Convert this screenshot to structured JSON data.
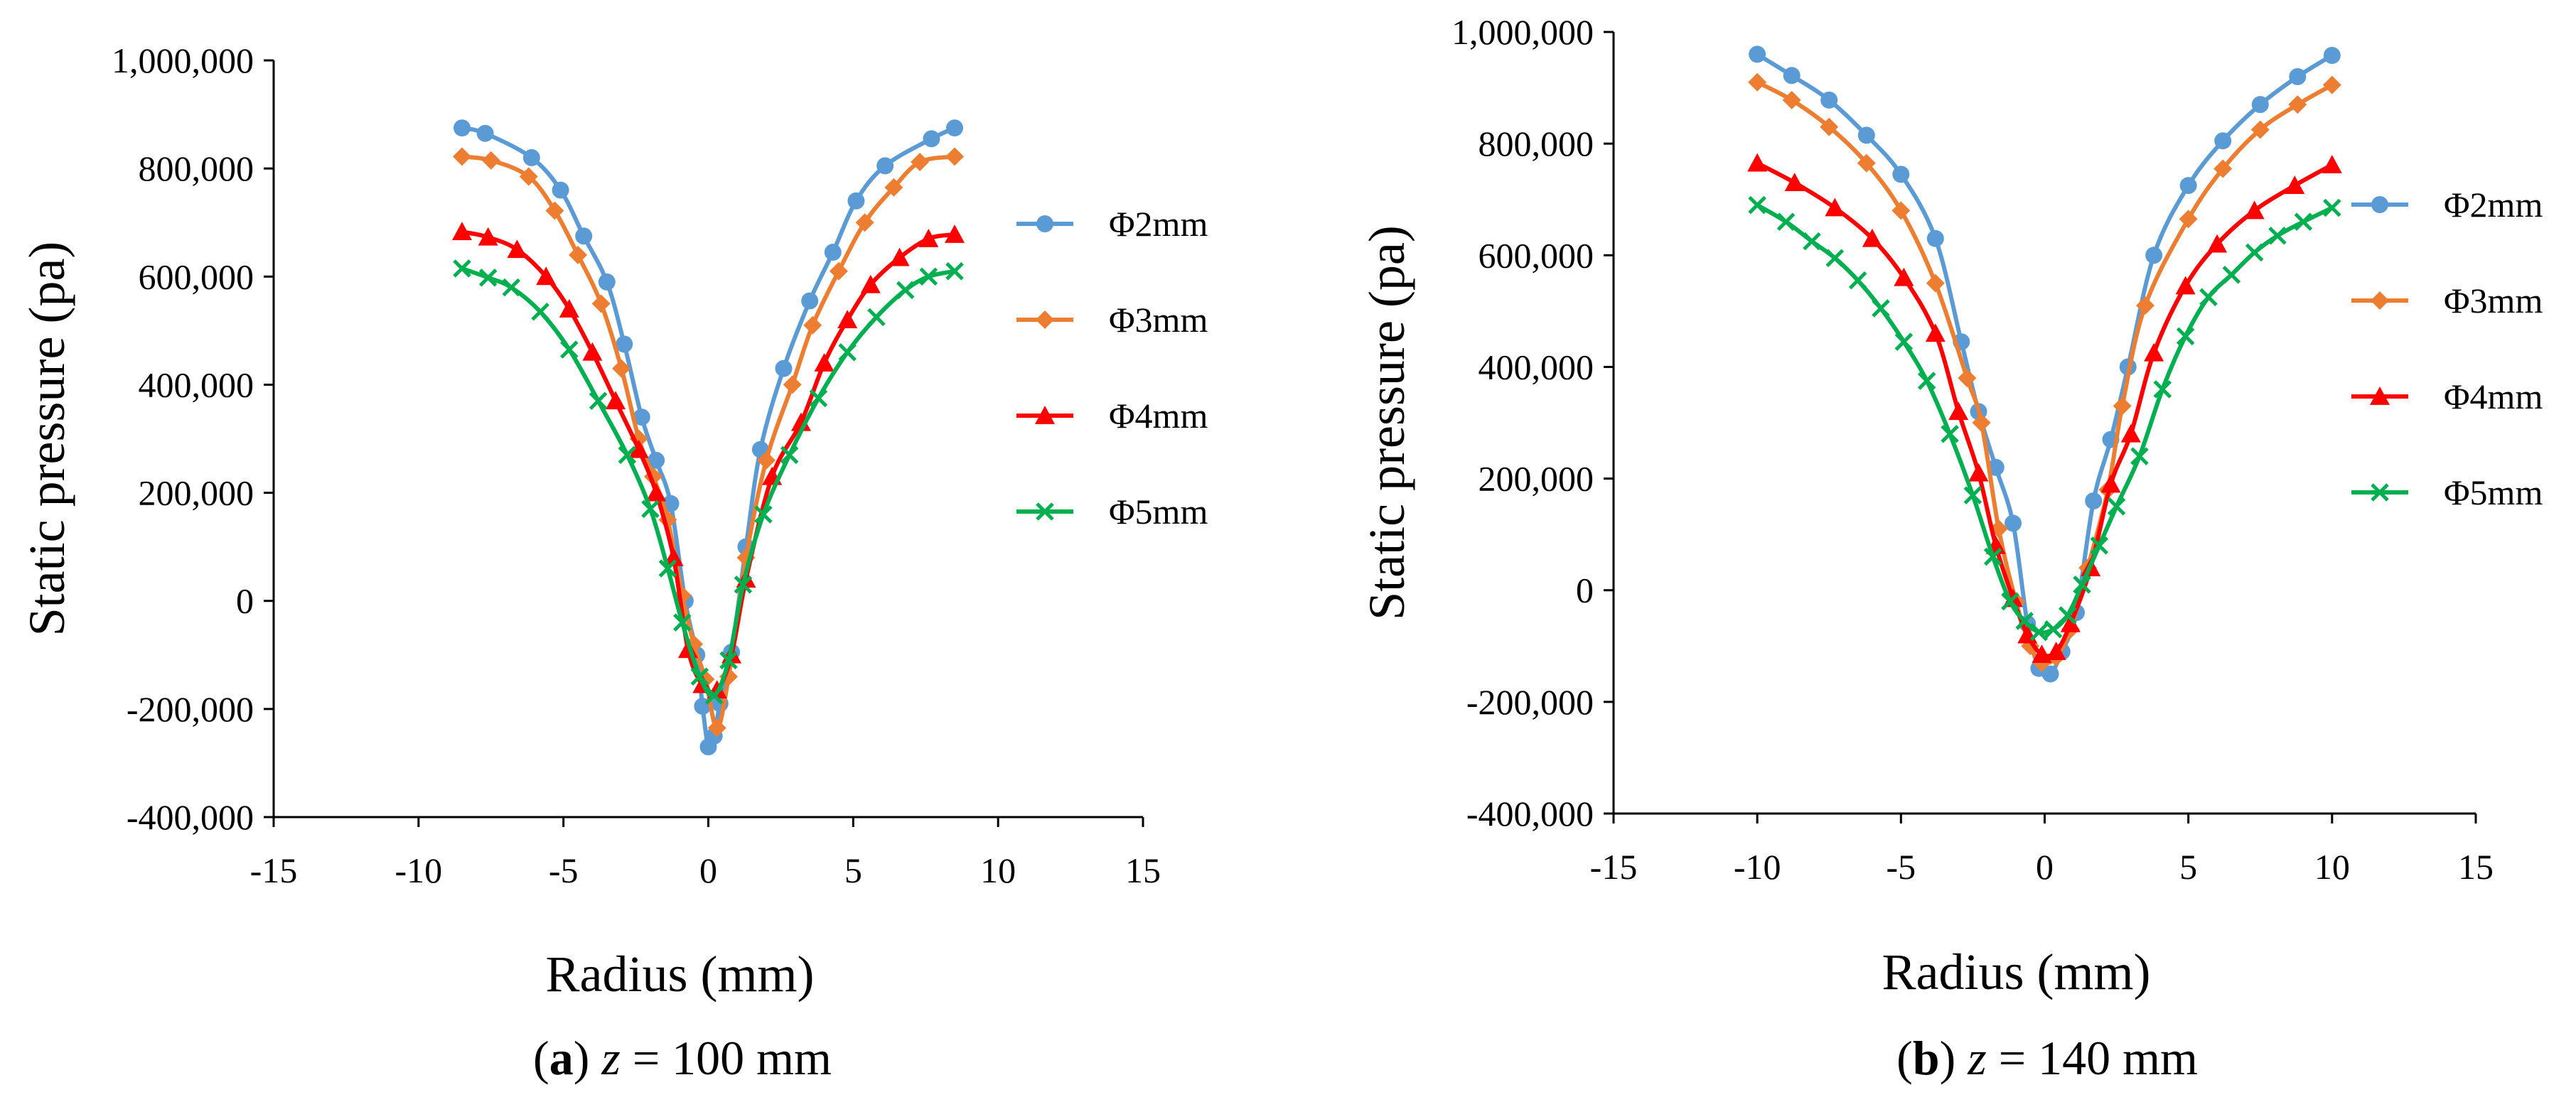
{
  "chart_data": [
    {
      "type": "line",
      "caption_letter": "a",
      "caption_var": "z",
      "caption_rest": " = 100 mm",
      "xlabel": "Radius (mm)",
      "ylabel": "Static pressure (pa)",
      "xlim": [
        -15,
        15
      ],
      "ylim": [
        -400000,
        1000000
      ],
      "xticks": [
        -15,
        -10,
        -5,
        0,
        5,
        10,
        15
      ],
      "yticks": [
        -400000,
        -200000,
        0,
        200000,
        400000,
        600000,
        800000,
        1000000
      ],
      "xtick_labels": [
        "-15",
        "-10",
        "-5",
        "0",
        "5",
        "10",
        "15"
      ],
      "ytick_labels": [
        "-400,000",
        "-200,000",
        "0",
        "200,000",
        "400,000",
        "600,000",
        "800,000",
        "1,000,000"
      ],
      "legend_position": "right",
      "series": [
        {
          "name": "Φ2mm",
          "color": "#5b9bd5",
          "marker": "circle",
          "x": [
            -8.5,
            -7.7,
            -6.1,
            -5.1,
            -4.3,
            -3.5,
            -2.9,
            -2.3,
            -1.8,
            -1.3,
            -0.8,
            -0.4,
            -0.2,
            0.0,
            0.2,
            0.4,
            0.8,
            1.3,
            1.8,
            2.6,
            3.5,
            4.3,
            5.1,
            6.1,
            7.7,
            8.5
          ],
          "y": [
            875000,
            865000,
            820000,
            760000,
            675000,
            590000,
            475000,
            340000,
            260000,
            180000,
            0,
            -100000,
            -195000,
            -270000,
            -250000,
            -190000,
            -95000,
            100000,
            280000,
            430000,
            555000,
            645000,
            740000,
            805000,
            855000,
            875000
          ]
        },
        {
          "name": "Φ3mm",
          "color": "#ed7d31",
          "marker": "diamond",
          "x": [
            -8.5,
            -7.5,
            -6.2,
            -5.3,
            -4.5,
            -3.7,
            -3.0,
            -2.4,
            -1.9,
            -1.4,
            -0.9,
            -0.5,
            -0.1,
            0.3,
            0.7,
            1.3,
            2.0,
            2.9,
            3.6,
            4.5,
            5.4,
            6.4,
            7.3,
            8.5
          ],
          "y": [
            822000,
            815000,
            785000,
            722000,
            640000,
            550000,
            430000,
            300000,
            230000,
            150000,
            10000,
            -80000,
            -145000,
            -235000,
            -140000,
            80000,
            260000,
            400000,
            510000,
            610000,
            700000,
            765000,
            812000,
            822000
          ]
        },
        {
          "name": "Φ4mm",
          "color": "#ff0000",
          "marker": "triangle",
          "x": [
            -8.5,
            -7.6,
            -6.6,
            -5.6,
            -4.8,
            -4.0,
            -3.2,
            -2.4,
            -1.8,
            -1.2,
            -0.7,
            -0.2,
            0.3,
            0.8,
            1.3,
            2.2,
            3.2,
            4.0,
            4.8,
            5.6,
            6.6,
            7.6,
            8.5
          ],
          "y": [
            683000,
            673000,
            650000,
            600000,
            540000,
            460000,
            370000,
            280000,
            200000,
            80000,
            -90000,
            -155000,
            -165000,
            -100000,
            40000,
            230000,
            330000,
            440000,
            520000,
            585000,
            635000,
            670000,
            678000
          ]
        },
        {
          "name": "Φ5mm",
          "color": "#00b050",
          "marker": "x",
          "x": [
            -8.5,
            -7.6,
            -6.8,
            -5.8,
            -4.8,
            -3.8,
            -2.8,
            -2.0,
            -1.4,
            -0.9,
            -0.3,
            0.2,
            0.7,
            1.2,
            1.9,
            2.8,
            3.8,
            4.8,
            5.8,
            6.8,
            7.6,
            8.5
          ],
          "y": [
            615000,
            598000,
            580000,
            535000,
            465000,
            370000,
            270000,
            170000,
            60000,
            -40000,
            -140000,
            -175000,
            -110000,
            30000,
            160000,
            270000,
            375000,
            460000,
            525000,
            575000,
            600000,
            610000
          ]
        }
      ]
    },
    {
      "type": "line",
      "caption_letter": "b",
      "caption_var": "z",
      "caption_rest": " = 140 mm",
      "xlabel": "Radius (mm)",
      "ylabel": "Static pressure (pa)",
      "xlim": [
        -15,
        15
      ],
      "ylim": [
        -400000,
        1000000
      ],
      "xticks": [
        -15,
        -10,
        -5,
        0,
        5,
        10,
        15
      ],
      "yticks": [
        -400000,
        -200000,
        0,
        200000,
        400000,
        600000,
        800000,
        1000000
      ],
      "xtick_labels": [
        "-15",
        "-10",
        "-5",
        "0",
        "5",
        "10",
        "15"
      ],
      "ytick_labels": [
        "-400,000",
        "-200,000",
        "0",
        "200,000",
        "400,000",
        "600,000",
        "800,000",
        "1,000,000"
      ],
      "legend_position": "right",
      "series": [
        {
          "name": "Φ2mm",
          "color": "#5b9bd5",
          "marker": "circle",
          "x": [
            -10.0,
            -8.8,
            -7.5,
            -6.2,
            -5.0,
            -3.8,
            -2.9,
            -2.3,
            -1.7,
            -1.1,
            -0.6,
            -0.2,
            0.2,
            0.6,
            1.1,
            1.7,
            2.3,
            2.9,
            3.8,
            5.0,
            6.2,
            7.5,
            8.8,
            10.0
          ],
          "y": [
            960000,
            922000,
            878000,
            815000,
            745000,
            630000,
            445000,
            320000,
            220000,
            120000,
            -60000,
            -140000,
            -150000,
            -110000,
            -40000,
            160000,
            270000,
            400000,
            600000,
            725000,
            805000,
            870000,
            920000,
            958000
          ]
        },
        {
          "name": "Φ3mm",
          "color": "#ed7d31",
          "marker": "diamond",
          "x": [
            -10.0,
            -8.8,
            -7.5,
            -6.2,
            -5.0,
            -3.8,
            -2.7,
            -2.2,
            -1.6,
            -1.0,
            -0.5,
            -0.1,
            0.4,
            0.9,
            1.5,
            2.2,
            2.7,
            3.5,
            5.0,
            6.2,
            7.5,
            8.8,
            10.0
          ],
          "y": [
            910000,
            878000,
            830000,
            765000,
            680000,
            550000,
            380000,
            300000,
            110000,
            -20000,
            -100000,
            -130000,
            -120000,
            -70000,
            40000,
            180000,
            330000,
            510000,
            665000,
            755000,
            825000,
            870000,
            905000
          ]
        },
        {
          "name": "Φ4mm",
          "color": "#ff0000",
          "marker": "triangle",
          "x": [
            -10.0,
            -8.7,
            -7.3,
            -6.0,
            -4.9,
            -3.8,
            -3.0,
            -2.3,
            -1.7,
            -1.1,
            -0.6,
            -0.1,
            0.4,
            0.9,
            1.6,
            2.3,
            3.0,
            3.8,
            4.9,
            6.0,
            7.3,
            8.7,
            10.0
          ],
          "y": [
            765000,
            730000,
            685000,
            630000,
            560000,
            460000,
            320000,
            210000,
            80000,
            -15000,
            -80000,
            -115000,
            -110000,
            -60000,
            40000,
            190000,
            280000,
            425000,
            545000,
            620000,
            680000,
            725000,
            762000
          ]
        },
        {
          "name": "Φ5mm",
          "color": "#00b050",
          "marker": "x",
          "x": [
            -10.0,
            -9.0,
            -8.1,
            -7.3,
            -6.5,
            -5.7,
            -4.9,
            -4.1,
            -3.3,
            -2.5,
            -1.8,
            -1.2,
            -0.7,
            -0.2,
            0.3,
            0.8,
            1.3,
            1.9,
            2.5,
            3.3,
            4.1,
            4.9,
            5.7,
            6.5,
            7.3,
            8.1,
            9.0,
            10.0
          ],
          "y": [
            690000,
            660000,
            625000,
            595000,
            555000,
            505000,
            445000,
            375000,
            280000,
            170000,
            60000,
            -20000,
            -55000,
            -75000,
            -70000,
            -45000,
            10000,
            80000,
            150000,
            240000,
            360000,
            455000,
            525000,
            565000,
            605000,
            635000,
            660000,
            685000
          ]
        }
      ]
    }
  ]
}
